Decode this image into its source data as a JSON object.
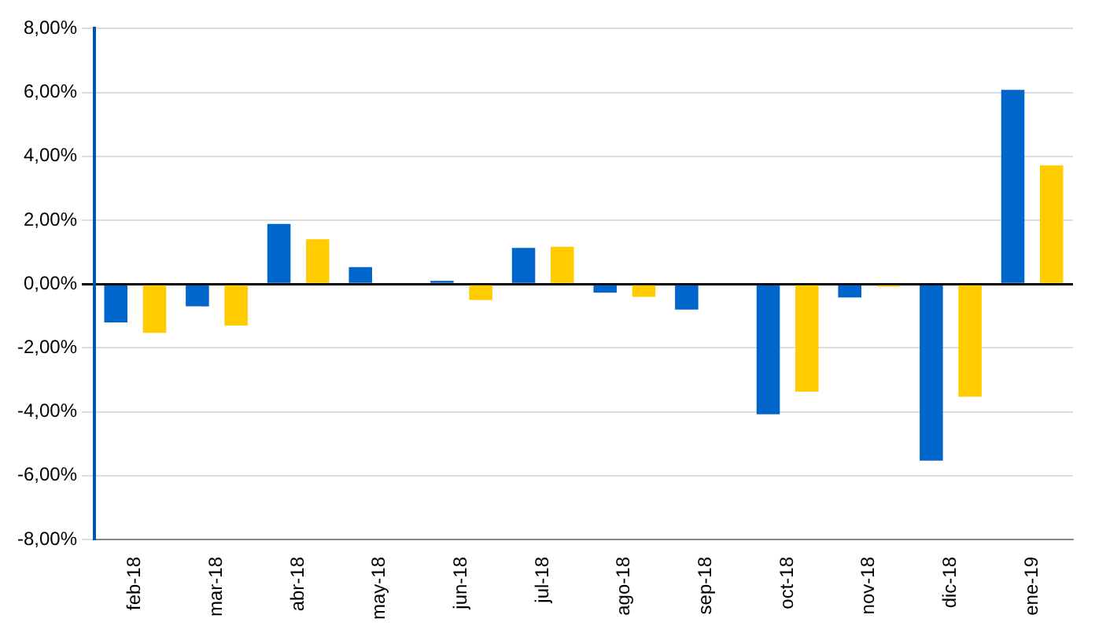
{
  "chart_data": {
    "type": "bar",
    "categories": [
      "feb-18",
      "mar-18",
      "abr-18",
      "may-18",
      "jun-18",
      "jul-18",
      "ago-18",
      "sep-18",
      "oct-18",
      "nov-18",
      "dic-18",
      "ene-19"
    ],
    "series": [
      {
        "color": "#0066cc",
        "values": [
          -1.2,
          -0.7,
          1.88,
          0.53,
          0.1,
          1.13,
          -0.27,
          -0.8,
          -4.08,
          -0.42,
          -5.53,
          6.08
        ]
      },
      {
        "color": "#ffcc00",
        "values": [
          -1.53,
          -1.3,
          1.4,
          0,
          -0.5,
          1.17,
          -0.4,
          null,
          -3.37,
          -0.08,
          -3.53,
          3.72
        ]
      }
    ],
    "ylim": [
      -8,
      8
    ],
    "yticks": [
      {
        "value": -8,
        "label": "-8,00%"
      },
      {
        "value": -6,
        "label": "-6,00%"
      },
      {
        "value": -4,
        "label": "-4,00%"
      },
      {
        "value": -2,
        "label": "-2,00%"
      },
      {
        "value": 0,
        "label": "0,00%"
      },
      {
        "value": 2,
        "label": "2,00%"
      },
      {
        "value": 4,
        "label": "4,00%"
      },
      {
        "value": 6,
        "label": "6,00%"
      },
      {
        "value": 8,
        "label": "8,00%"
      }
    ],
    "grid": "y",
    "legend": false
  }
}
